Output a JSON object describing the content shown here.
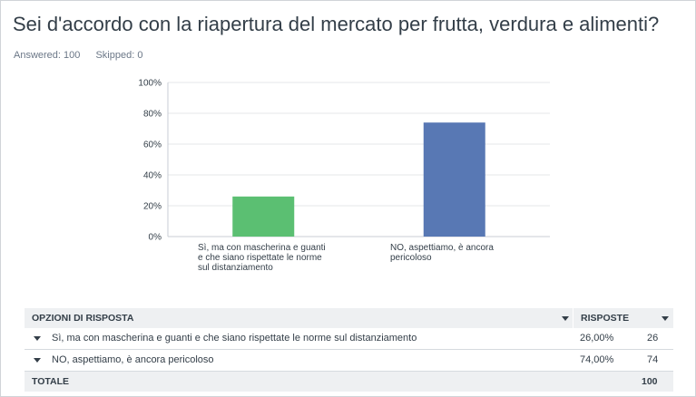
{
  "question": {
    "title": "Sei d'accordo con la riapertura del mercato per frutta, verdura e alimenti?",
    "answered": "Answered: 100",
    "skipped": "Skipped: 0"
  },
  "chart_data": {
    "type": "bar",
    "title": "Sei d'accordo con la riapertura del mercato per frutta, verdura e alimenti?",
    "categories": [
      "Sì, ma con mascherina e guanti e che siano rispettate le norme sul distanziamento",
      "NO, aspettiamo, è ancora pericoloso"
    ],
    "category_lines": [
      [
        "Sì, ma con mascherina e guanti",
        "e che siano rispettate le norme",
        "sul distanziamento"
      ],
      [
        "NO, aspettiamo, è ancora",
        "pericoloso"
      ]
    ],
    "values": [
      26,
      74
    ],
    "colors": [
      "#5bbf72",
      "#5878b4"
    ],
    "ylim": [
      0,
      100
    ],
    "yticks": [
      0,
      20,
      40,
      60,
      80,
      100
    ],
    "ytick_labels": [
      "0%",
      "20%",
      "40%",
      "60%",
      "80%",
      "100%"
    ],
    "xlabel": "",
    "ylabel": "",
    "grid": true
  },
  "table": {
    "header_option": "OPZIONI DI RISPOSTA",
    "header_responses": "RISPOSTE",
    "rows": [
      {
        "label": "Sì, ma con mascherina e guanti e che siano rispettate le norme sul distanziamento",
        "percent": "26,00%",
        "count": "26"
      },
      {
        "label": "NO, aspettiamo, è ancora pericoloso",
        "percent": "74,00%",
        "count": "74"
      }
    ],
    "total_label": "TOTALE",
    "total_count": "100"
  },
  "icons": {
    "sort": "caret-down-icon",
    "expand": "caret-down-icon"
  }
}
